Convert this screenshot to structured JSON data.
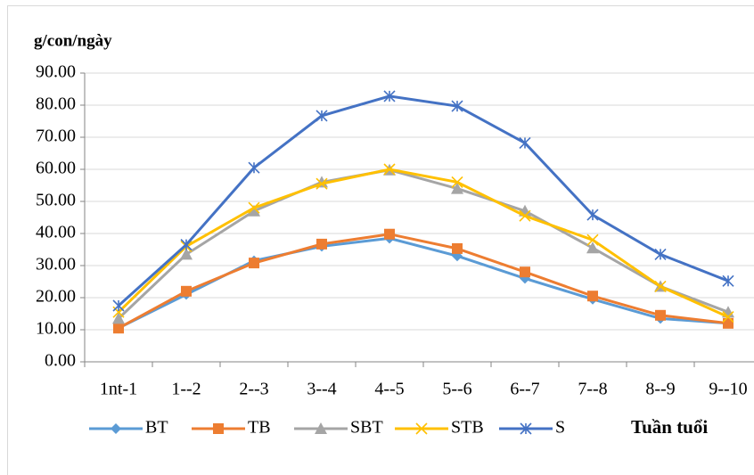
{
  "chart_data": {
    "type": "line",
    "y_label": "g/con/ngày",
    "x_label": "Tuần tuổi",
    "categories": [
      "1nt-1",
      "1--2",
      "2--3",
      "3--4",
      "4--5",
      "5--6",
      "6--7",
      "7--8",
      "8--9",
      "9--10"
    ],
    "series": [
      {
        "name": "BT",
        "color": "#5b9bd5",
        "marker": "diamond",
        "values": [
          10.5,
          21,
          31.5,
          36,
          38.5,
          33,
          26,
          19.5,
          13.5,
          12
        ]
      },
      {
        "name": "TB",
        "color": "#ed7d31",
        "marker": "square",
        "values": [
          10.5,
          22,
          30.8,
          36.7,
          39.8,
          35.3,
          28,
          20.5,
          14.5,
          12
        ]
      },
      {
        "name": "SBT",
        "color": "#a5a5a5",
        "marker": "triangle",
        "values": [
          13.5,
          33.5,
          47,
          56,
          59.8,
          54,
          47,
          35.5,
          23.5,
          15.5
        ]
      },
      {
        "name": "STB",
        "color": "#ffc000",
        "marker": "x",
        "values": [
          15.5,
          36,
          48,
          55.5,
          60,
          56,
          45.5,
          38,
          23.5,
          14
        ]
      },
      {
        "name": "S",
        "color": "#4472c4",
        "marker": "star",
        "values": [
          17.5,
          36.5,
          60.5,
          76.7,
          82.8,
          79.7,
          68.2,
          45.8,
          33.5,
          25.2
        ]
      }
    ],
    "ylim": [
      0,
      90
    ],
    "yticks": [
      {
        "value": 0,
        "label": "0.00"
      },
      {
        "value": 10,
        "label": "10.00"
      },
      {
        "value": 20,
        "label": "20.00"
      },
      {
        "value": 30,
        "label": "30.00"
      },
      {
        "value": 40,
        "label": "40.00"
      },
      {
        "value": 50,
        "label": "50.00"
      },
      {
        "value": 60,
        "label": "60.00"
      },
      {
        "value": 70,
        "label": "70.00"
      },
      {
        "value": 80,
        "label": "80.00"
      },
      {
        "value": 90,
        "label": "90.00"
      }
    ],
    "grid": true
  }
}
